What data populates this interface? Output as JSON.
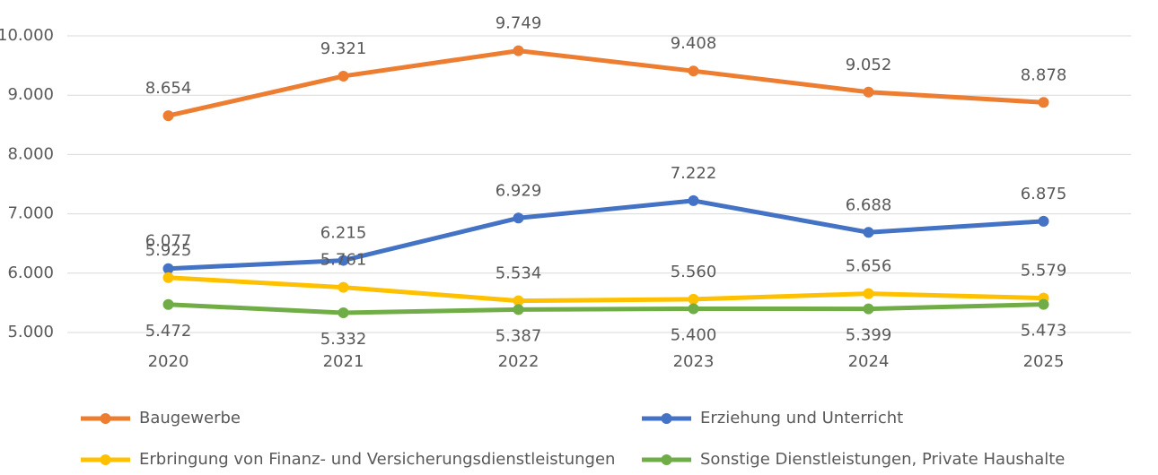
{
  "chart_data": {
    "type": "line",
    "categories": [
      "2020",
      "2021",
      "2022",
      "2023",
      "2024",
      "2025"
    ],
    "series": [
      {
        "name": "Baugewerbe",
        "color": "#ED7D31",
        "values": [
          8654,
          9321,
          9749,
          9408,
          9052,
          8878
        ],
        "value_labels": [
          "8.654",
          "9.321",
          "9.749",
          "9.408",
          "9.052",
          "8.878"
        ]
      },
      {
        "name": "Erziehung und Unterricht",
        "color": "#4472C4",
        "values": [
          6077,
          6215,
          6929,
          7222,
          6688,
          6875
        ],
        "value_labels": [
          "6.077",
          "6.215",
          "6.929",
          "7.222",
          "6.688",
          "6.875"
        ]
      },
      {
        "name": "Erbringung von Finanz- und Versicherungsdienstleistungen",
        "color": "#FFC000",
        "values": [
          5925,
          5761,
          5534,
          5560,
          5656,
          5579
        ],
        "value_labels": [
          "5.925",
          "5.761",
          "5.534",
          "5.560",
          "5.656",
          "5.579"
        ]
      },
      {
        "name": "Sonstige Dienstleistungen, Private Haushalte",
        "color": "#70AD47",
        "values": [
          5472,
          5332,
          5387,
          5400,
          5399,
          5473
        ],
        "value_labels": [
          "5.472",
          "5.332",
          "5.387",
          "5.400",
          "5.399",
          "5.473"
        ]
      }
    ],
    "ylim": [
      5000,
      10000
    ],
    "yticks": [
      {
        "value": 5000,
        "label": "5.000"
      },
      {
        "value": 6000,
        "label": "6.000"
      },
      {
        "value": 7000,
        "label": "7.000"
      },
      {
        "value": 8000,
        "label": "8.000"
      },
      {
        "value": 9000,
        "label": "9.000"
      },
      {
        "value": 10000,
        "label": "10.000"
      }
    ],
    "grid": true,
    "legend": "bottom"
  }
}
